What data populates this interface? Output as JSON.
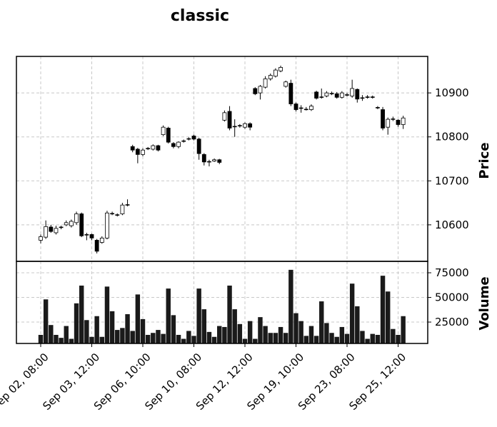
{
  "chart_data": {
    "type": "candlestick",
    "title": "classic",
    "ylabel": "Price",
    "volume_label": "Volume",
    "categories": [
      "Sep 02, 08:00",
      null,
      null,
      null,
      null,
      null,
      null,
      null,
      null,
      null,
      "Sep 03, 12:00",
      null,
      null,
      null,
      null,
      null,
      null,
      null,
      null,
      null,
      "Sep 06, 10:00",
      null,
      null,
      null,
      null,
      null,
      null,
      null,
      null,
      null,
      "Sep 10, 08:00",
      null,
      null,
      null,
      null,
      null,
      null,
      null,
      null,
      null,
      "Sep 12, 12:00",
      null,
      null,
      null,
      null,
      null,
      null,
      null,
      null,
      null,
      "Sep 19, 10:00",
      null,
      null,
      null,
      null,
      null,
      null,
      null,
      null,
      null,
      "Sep 23, 08:00",
      null,
      null,
      null,
      null,
      null,
      null,
      null,
      null,
      null,
      "Sep 25, 12:00",
      null
    ],
    "open": [
      10565,
      10572,
      10595,
      10582,
      10594,
      10600,
      10598,
      10605,
      10625,
      10577,
      10578,
      10565,
      10560,
      10570,
      10625,
      10622,
      10625,
      10645,
      10778,
      10772,
      10760,
      10773,
      10772,
      10780,
      10805,
      10820,
      10785,
      10778,
      10790,
      10795,
      10802,
      10795,
      10760,
      10743,
      10745,
      10748,
      10838,
      10858,
      10823,
      10825,
      10822,
      10830,
      10910,
      10900,
      10913,
      10932,
      10938,
      10950,
      10915,
      10922,
      10875,
      10865,
      10862,
      10862,
      10902,
      10890,
      10893,
      10898,
      10898,
      10890,
      10895,
      10893,
      10908,
      10888,
      10890,
      10890,
      10866,
      10862,
      10822,
      10840,
      10838,
      10828
    ],
    "high": [
      10578,
      10610,
      10600,
      10598,
      10598,
      10610,
      10612,
      10630,
      10628,
      10582,
      10580,
      10568,
      10574,
      10632,
      10630,
      10626,
      10650,
      10658,
      10782,
      10775,
      10774,
      10777,
      10783,
      10782,
      10826,
      10823,
      10788,
      10790,
      10794,
      10799,
      10805,
      10798,
      10763,
      10748,
      10751,
      10750,
      10860,
      10870,
      10840,
      10829,
      10833,
      10833,
      10913,
      10918,
      10938,
      10944,
      10956,
      10962,
      10928,
      10930,
      10878,
      10872,
      10868,
      10874,
      10905,
      10910,
      10904,
      10903,
      10902,
      10904,
      10900,
      10930,
      10910,
      10895,
      10895,
      10894,
      10870,
      10868,
      10844,
      10846,
      10840,
      10848
    ],
    "low": [
      10558,
      10568,
      10582,
      10578,
      10590,
      10597,
      10594,
      10600,
      10572,
      10565,
      10565,
      10535,
      10557,
      10567,
      10622,
      10619,
      10622,
      10642,
      10765,
      10740,
      10756,
      10770,
      10769,
      10767,
      10802,
      10785,
      10774,
      10774,
      10787,
      10792,
      10792,
      10748,
      10735,
      10733,
      10743,
      10738,
      10835,
      10815,
      10800,
      10821,
      10818,
      10815,
      10895,
      10885,
      10910,
      10928,
      10935,
      10947,
      10912,
      10870,
      10858,
      10855,
      10860,
      10859,
      10885,
      10887,
      10890,
      10895,
      10887,
      10887,
      10892,
      10889,
      10878,
      10882,
      10887,
      10887,
      10863,
      10815,
      10805,
      10836,
      10823,
      10818
    ],
    "close": [
      10573,
      10596,
      10585,
      10592,
      10595,
      10605,
      10608,
      10625,
      10575,
      10578,
      10570,
      10540,
      10570,
      10627,
      10626,
      10623,
      10645,
      10646,
      10770,
      10760,
      10770,
      10774,
      10780,
      10770,
      10822,
      10788,
      10778,
      10788,
      10791,
      10796,
      10795,
      10762,
      10743,
      10744,
      10748,
      10742,
      10855,
      10820,
      10824,
      10826,
      10830,
      10822,
      10898,
      10915,
      10932,
      10940,
      10952,
      10958,
      10925,
      10875,
      10862,
      10866,
      10863,
      10870,
      10888,
      10891,
      10900,
      10899,
      10890,
      10900,
      10896,
      10910,
      10886,
      10889,
      10891,
      10891,
      10867,
      10820,
      10840,
      10841,
      10828,
      10843
    ],
    "volume": [
      12000,
      48000,
      22000,
      12000,
      9000,
      21000,
      8000,
      44000,
      62000,
      27000,
      10000,
      31000,
      10000,
      61000,
      36000,
      17000,
      19000,
      33000,
      16000,
      53000,
      28000,
      12000,
      14000,
      17000,
      13000,
      59000,
      32000,
      12000,
      8000,
      16000,
      11000,
      59000,
      38000,
      15000,
      10000,
      21000,
      20000,
      62000,
      38000,
      23000,
      8000,
      26000,
      8000,
      30000,
      21000,
      14000,
      14000,
      20000,
      14000,
      78000,
      34000,
      26000,
      11000,
      21000,
      11000,
      46000,
      24000,
      14000,
      10000,
      20000,
      13000,
      64000,
      41000,
      16000,
      8000,
      13000,
      12000,
      72000,
      56000,
      18000,
      12000,
      31000
    ],
    "ylim": [
      10517,
      10983
    ],
    "yticks": [
      10600,
      10700,
      10800,
      10900
    ],
    "volume_ylim": [
      3300,
      86600
    ],
    "volume_yticks": [
      25000,
      50000,
      75000
    ],
    "up_color": "#ffffff",
    "down_color": "#000000",
    "edge_color": "#000000",
    "volume_color": "#1a1a1a",
    "grid": true
  }
}
